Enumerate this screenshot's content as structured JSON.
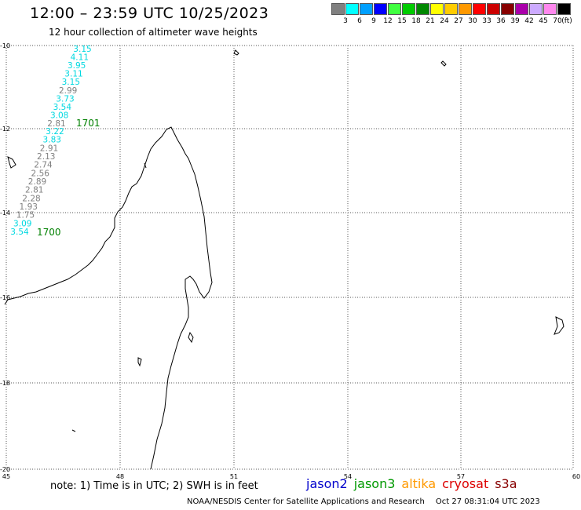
{
  "header": {
    "title": "12:00 – 23:59 UTC 10/25/2023",
    "subtitle": "12 hour collection of altimeter wave heights"
  },
  "legend": {
    "unit": "(ft)",
    "bins": [
      {
        "color": "#808080",
        "label": "3"
      },
      {
        "color": "#00ffff",
        "label": "6"
      },
      {
        "color": "#00a0ff",
        "label": "9"
      },
      {
        "color": "#0000ff",
        "label": "12"
      },
      {
        "color": "#40ff40",
        "label": "15"
      },
      {
        "color": "#00cc00",
        "label": "18"
      },
      {
        "color": "#008800",
        "label": "21"
      },
      {
        "color": "#ffff00",
        "label": "24"
      },
      {
        "color": "#ffcc00",
        "label": "27"
      },
      {
        "color": "#ff9900",
        "label": "30"
      },
      {
        "color": "#ff0000",
        "label": "33"
      },
      {
        "color": "#cc0000",
        "label": "36"
      },
      {
        "color": "#880000",
        "label": "39"
      },
      {
        "color": "#aa00aa",
        "label": "42"
      },
      {
        "color": "#ccaaff",
        "label": "45"
      },
      {
        "color": "#ff88ee",
        "label": "70"
      },
      {
        "color": "#000000",
        "label": ""
      }
    ]
  },
  "map": {
    "lon_labels": [
      "45",
      "48",
      "51",
      "54",
      "57",
      "60"
    ],
    "lat_labels": [
      "-10",
      "-12",
      "-14",
      "-16",
      "-18",
      "-20"
    ],
    "track_cyan_color": "#00d8e0",
    "track_gray_color": "#808080",
    "time_label_color": "#008000",
    "track_a": {
      "time": "1701",
      "values": [
        {
          "v": "3.15",
          "c": "cyan"
        },
        {
          "v": "4.11",
          "c": "cyan"
        },
        {
          "v": "3.95",
          "c": "cyan"
        },
        {
          "v": "3.11",
          "c": "cyan"
        },
        {
          "v": "3.15",
          "c": "cyan"
        },
        {
          "v": "2.99",
          "c": "gray"
        },
        {
          "v": "3.73",
          "c": "cyan"
        },
        {
          "v": "3.54",
          "c": "cyan"
        },
        {
          "v": "3.08",
          "c": "cyan"
        },
        {
          "v": "2.81",
          "c": "gray"
        }
      ]
    },
    "track_b": {
      "time": "1700",
      "values": [
        {
          "v": "3.22",
          "c": "cyan"
        },
        {
          "v": "3.83",
          "c": "cyan"
        },
        {
          "v": "2.91",
          "c": "gray"
        },
        {
          "v": "2.13",
          "c": "gray"
        },
        {
          "v": "2.74",
          "c": "gray"
        },
        {
          "v": "2.56",
          "c": "gray"
        },
        {
          "v": "2.89",
          "c": "gray"
        },
        {
          "v": "2.81",
          "c": "gray"
        },
        {
          "v": "2.28",
          "c": "gray"
        },
        {
          "v": "1.93",
          "c": "gray"
        },
        {
          "v": "1.75",
          "c": "gray"
        },
        {
          "v": "3.09",
          "c": "cyan"
        },
        {
          "v": "3.54",
          "c": "cyan"
        }
      ]
    }
  },
  "footer": {
    "note": "note: 1) Time is in UTC; 2) SWH is in feet",
    "satellites": [
      {
        "name": "jason2",
        "color": "#0000cc"
      },
      {
        "name": "jason3",
        "color": "#009900"
      },
      {
        "name": "altika",
        "color": "#ff9900"
      },
      {
        "name": "cryosat",
        "color": "#dd0000"
      },
      {
        "name": "s3a",
        "color": "#880000"
      }
    ],
    "credit": "NOAA/NESDIS Center for Satellite Applications and Research",
    "timestamp": "Oct 27 08:31:04 UTC 2023"
  }
}
